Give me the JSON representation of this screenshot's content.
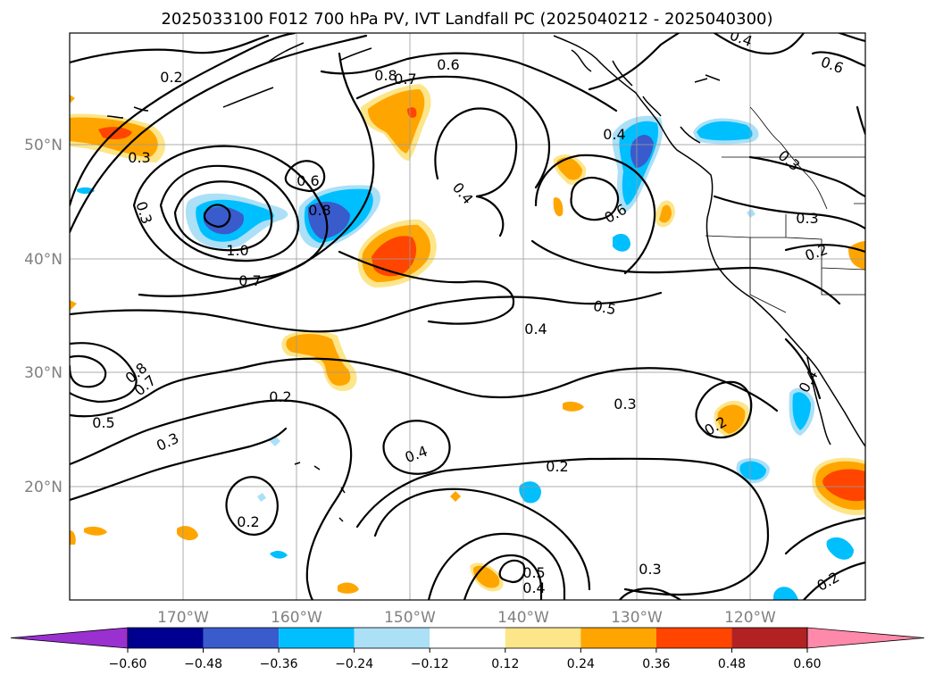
{
  "title": "2025033100 F012 700 hPa PV, IVT Landfall PC (2025040212 - 2025040300)",
  "lat_labels": [
    "50°N",
    "40°N",
    "30°N",
    "20°N"
  ],
  "lon_labels": [
    "170°W",
    "160°W",
    "150°W",
    "140°W",
    "130°W",
    "120°W"
  ],
  "colorbar": {
    "ticks": [
      "−0.60",
      "−0.48",
      "−0.36",
      "−0.24",
      "−0.12",
      "0.12",
      "0.24",
      "0.36",
      "0.48",
      "0.60"
    ],
    "colors": {
      "under": "#9b30d0",
      "bins": [
        "#000090",
        "#3a5bcc",
        "#00bfff",
        "#abe0f7",
        "#ffffff",
        "#fde58a",
        "#ffa500",
        "#ff4500",
        "#b22222"
      ],
      "over": "#ff89aa"
    }
  },
  "contour_labels": [
    {
      "id": "c1",
      "text": "0.2"
    },
    {
      "id": "c2",
      "text": "0.3"
    },
    {
      "id": "c3",
      "text": "0.6"
    },
    {
      "id": "c4",
      "text": "0.8"
    },
    {
      "id": "c5",
      "text": "1.0"
    },
    {
      "id": "c6",
      "text": "0.7"
    },
    {
      "id": "c7",
      "text": "0.3"
    },
    {
      "id": "c8",
      "text": "0.8"
    },
    {
      "id": "c9",
      "text": "0.7"
    },
    {
      "id": "c10",
      "text": "0.6"
    },
    {
      "id": "c11",
      "text": "0.4"
    },
    {
      "id": "c12",
      "text": "0.4"
    },
    {
      "id": "c13",
      "text": "0.6"
    },
    {
      "id": "c14",
      "text": "0.5"
    },
    {
      "id": "c15",
      "text": "0.4"
    },
    {
      "id": "c16",
      "text": "0.5"
    },
    {
      "id": "c17",
      "text": "0.8"
    },
    {
      "id": "c18",
      "text": "0.7"
    },
    {
      "id": "c19",
      "text": "0.2"
    },
    {
      "id": "c20",
      "text": "0.3"
    },
    {
      "id": "c21",
      "text": "0.4"
    },
    {
      "id": "c22",
      "text": "0.2"
    },
    {
      "id": "c23",
      "text": "0.3"
    },
    {
      "id": "c24",
      "text": "0.2"
    },
    {
      "id": "c25",
      "text": "0.2"
    },
    {
      "id": "c26",
      "text": "0.5"
    },
    {
      "id": "c27",
      "text": "0.4"
    },
    {
      "id": "c28",
      "text": "0.3"
    },
    {
      "id": "c29",
      "text": "0.2"
    },
    {
      "id": "c30",
      "text": "0.3"
    },
    {
      "id": "c31",
      "text": "0.2"
    },
    {
      "id": "c32",
      "text": "0.3"
    },
    {
      "id": "c33",
      "text": "0.4"
    },
    {
      "id": "c34",
      "text": "0.6"
    },
    {
      "id": "c35",
      "text": "0.4"
    }
  ]
}
